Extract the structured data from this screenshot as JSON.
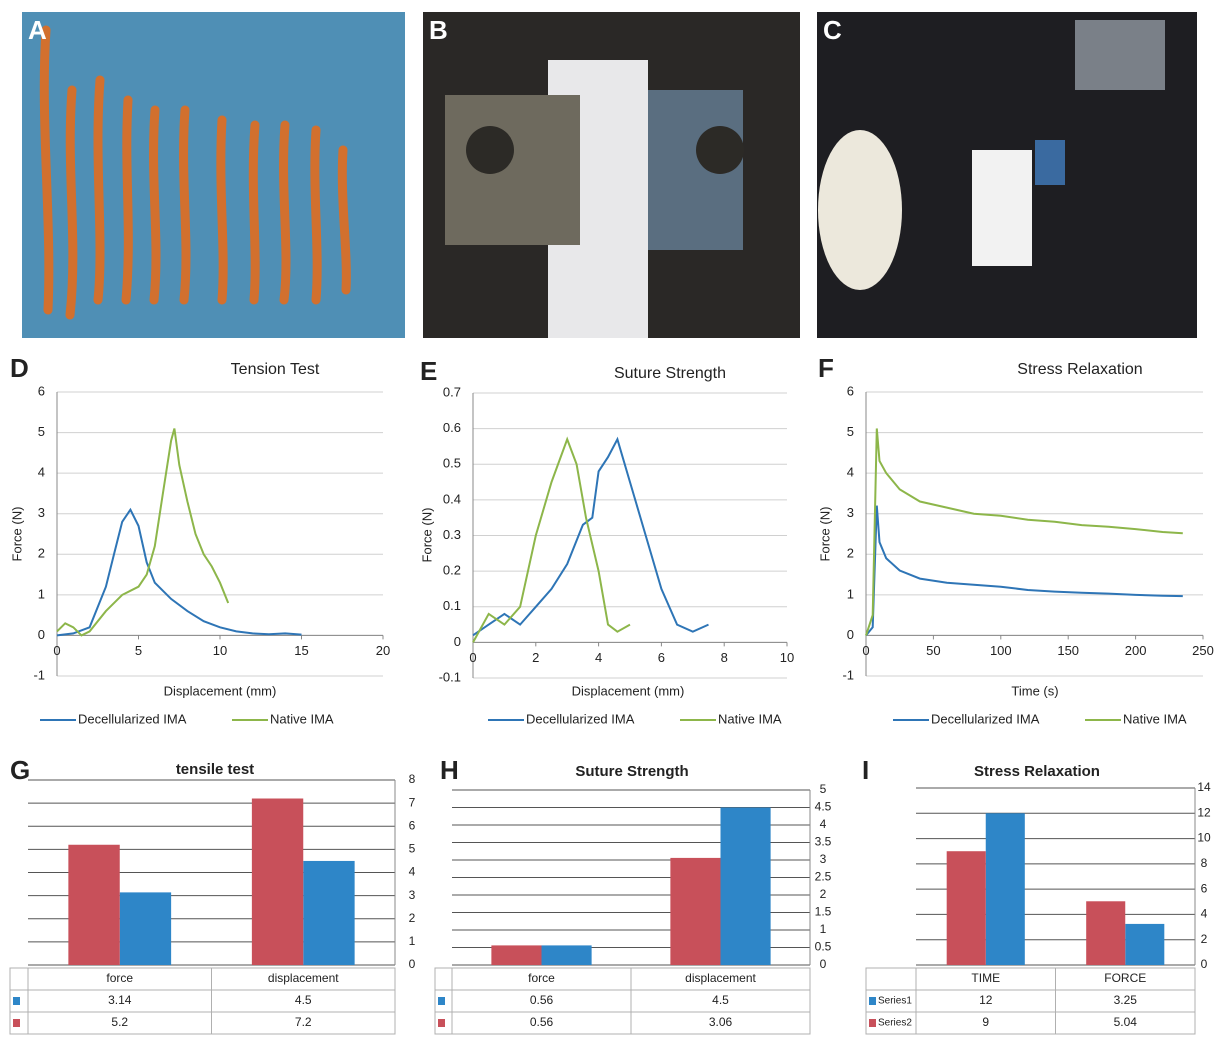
{
  "photos": [
    "A",
    "B",
    "C"
  ],
  "chart_data": [
    {
      "type": "line",
      "label": "D",
      "title": "Tension Test",
      "x_label": "Displacement (mm)",
      "y_label": "Force (N)",
      "xlim": [
        0,
        20
      ],
      "xticks": [
        0,
        5,
        10,
        15,
        20
      ],
      "ylim": [
        -1,
        6
      ],
      "yticks": [
        -1,
        0,
        1,
        2,
        3,
        4,
        5,
        6
      ],
      "grid": true,
      "series": [
        {
          "name": "Decellularized IMA",
          "color": "#2e75b6",
          "x": [
            0,
            1,
            2,
            3,
            3.5,
            4,
            4.5,
            5,
            5.5,
            6,
            7,
            8,
            9,
            10,
            11,
            12,
            13,
            14,
            15
          ],
          "values": [
            0,
            0.05,
            0.2,
            1.2,
            2,
            2.8,
            3.1,
            2.7,
            1.8,
            1.3,
            0.9,
            0.6,
            0.35,
            0.2,
            0.1,
            0.05,
            0.03,
            0.05,
            0.02
          ]
        },
        {
          "name": "Native IMA",
          "color": "#8db64a",
          "x": [
            0,
            0.5,
            1,
            1.5,
            2,
            3,
            4,
            5,
            5.5,
            6,
            6.5,
            7,
            7.2,
            7.5,
            8,
            8.5,
            9,
            9.5,
            10,
            10.5
          ],
          "values": [
            0.1,
            0.3,
            0.2,
            0,
            0.1,
            0.6,
            1,
            1.2,
            1.5,
            2.2,
            3.5,
            4.8,
            5.1,
            4.2,
            3.3,
            2.5,
            2,
            1.7,
            1.3,
            0.8
          ]
        }
      ]
    },
    {
      "type": "line",
      "label": "E",
      "title": "Suture Strength",
      "x_label": "Displacement (mm)",
      "y_label": "Force (N)",
      "xlim": [
        0,
        10
      ],
      "xticks": [
        0,
        2,
        4,
        6,
        8,
        10
      ],
      "ylim": [
        -0.1,
        0.7
      ],
      "yticks": [
        -0.1,
        0,
        0.1,
        0.2,
        0.3,
        0.4,
        0.5,
        0.6,
        0.7
      ],
      "grid": true,
      "series": [
        {
          "name": "Decellularized IMA",
          "color": "#2e75b6",
          "x": [
            0,
            0.5,
            1,
            1.5,
            2,
            2.5,
            3,
            3.5,
            3.8,
            4,
            4.3,
            4.6,
            5,
            5.5,
            6,
            6.5,
            7,
            7.5
          ],
          "values": [
            0.02,
            0.05,
            0.08,
            0.05,
            0.1,
            0.15,
            0.22,
            0.33,
            0.35,
            0.48,
            0.52,
            0.57,
            0.45,
            0.3,
            0.15,
            0.05,
            0.03,
            0.05
          ]
        },
        {
          "name": "Native IMA",
          "color": "#8db64a",
          "x": [
            0,
            0.5,
            1,
            1.5,
            2,
            2.5,
            3,
            3.3,
            3.6,
            4,
            4.3,
            4.6,
            5
          ],
          "values": [
            0,
            0.08,
            0.05,
            0.1,
            0.3,
            0.45,
            0.57,
            0.5,
            0.35,
            0.2,
            0.05,
            0.03,
            0.05
          ]
        }
      ]
    },
    {
      "type": "line",
      "label": "F",
      "title": "Stress Relaxation",
      "x_label": "Time (s)",
      "y_label": "Force (N)",
      "xlim": [
        0,
        250
      ],
      "xticks": [
        0,
        50,
        100,
        150,
        200,
        250
      ],
      "ylim": [
        -1,
        6
      ],
      "yticks": [
        -1,
        0,
        1,
        2,
        3,
        4,
        5,
        6
      ],
      "grid": true,
      "series": [
        {
          "name": "Decellularized IMA",
          "color": "#2e75b6",
          "x": [
            0,
            5,
            8,
            10,
            15,
            25,
            40,
            60,
            80,
            100,
            120,
            140,
            160,
            180,
            200,
            220,
            235
          ],
          "values": [
            0,
            0.2,
            3.2,
            2.3,
            1.9,
            1.6,
            1.4,
            1.3,
            1.25,
            1.2,
            1.12,
            1.08,
            1.05,
            1.03,
            1,
            0.98,
            0.97
          ]
        },
        {
          "name": "Native IMA",
          "color": "#8db64a",
          "x": [
            0,
            5,
            8,
            10,
            15,
            25,
            40,
            60,
            80,
            100,
            120,
            140,
            160,
            180,
            200,
            220,
            235
          ],
          "values": [
            0,
            0.5,
            5.1,
            4.3,
            4,
            3.6,
            3.3,
            3.15,
            3,
            2.95,
            2.85,
            2.8,
            2.72,
            2.68,
            2.62,
            2.55,
            2.52
          ]
        }
      ]
    },
    {
      "type": "bar",
      "label": "G",
      "title": "tensile test",
      "categories": [
        "force",
        "displacement"
      ],
      "ylim": [
        0,
        8
      ],
      "yticks": [
        0,
        1,
        2,
        3,
        4,
        5,
        6,
        7,
        8
      ],
      "grid": true,
      "series": [
        {
          "color": "#2e86c8",
          "values": [
            3.14,
            4.5
          ]
        },
        {
          "color": "#c8505a",
          "values": [
            5.2,
            7.2
          ]
        }
      ]
    },
    {
      "type": "bar",
      "label": "H",
      "title": "Suture Strength",
      "categories": [
        "force",
        "displacement"
      ],
      "ylim": [
        0,
        5
      ],
      "yticks": [
        0,
        0.5,
        1,
        1.5,
        2,
        2.5,
        3,
        3.5,
        4,
        4.5,
        5
      ],
      "grid": true,
      "series": [
        {
          "color": "#2e86c8",
          "values": [
            0.56,
            4.5
          ]
        },
        {
          "color": "#c8505a",
          "values": [
            0.56,
            3.06
          ]
        }
      ]
    },
    {
      "type": "bar",
      "label": "I",
      "title": "Stress Relaxation",
      "categories": [
        "TIME",
        "FORCE"
      ],
      "ylim": [
        0,
        14
      ],
      "yticks": [
        0,
        2,
        4,
        6,
        8,
        10,
        12,
        14
      ],
      "grid": true,
      "series": [
        {
          "name": "Series1",
          "color": "#2e86c8",
          "values": [
            12,
            3.25
          ]
        },
        {
          "name": "Series2",
          "color": "#c8505a",
          "values": [
            9,
            5.04
          ]
        }
      ]
    }
  ]
}
